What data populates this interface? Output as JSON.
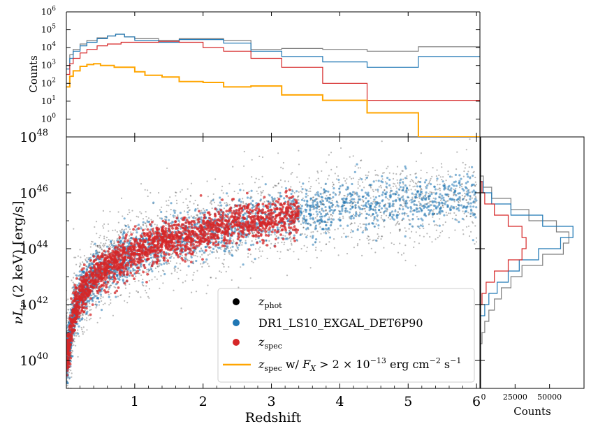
{
  "chart_data": [
    {
      "type": "scatter",
      "panel": "main",
      "xlabel": "Redshift",
      "ylabel": "νL_ν (2 keV) [erg/s]",
      "ylabel_parts": {
        "nu": "ν",
        "L": "L",
        "sub": "ν",
        "rest": " (2 keV) [erg/s]"
      },
      "xlim": [
        0,
        6.05
      ],
      "ylim_log10": [
        39.0,
        48.0
      ],
      "yscale": "log",
      "x_ticks": [
        1,
        2,
        3,
        4,
        5,
        6
      ],
      "x_tick_labels": [
        "1",
        "2",
        "3",
        "4",
        "5",
        "6"
      ],
      "y_ticks_log10": [
        40,
        42,
        44,
        46,
        48
      ],
      "y_tick_labels": [
        {
          "base": "10",
          "exp": "40"
        },
        {
          "base": "10",
          "exp": "42"
        },
        {
          "base": "10",
          "exp": "44"
        },
        {
          "base": "10",
          "exp": "46"
        },
        {
          "base": "10",
          "exp": "48"
        }
      ],
      "series": [
        {
          "key": "phot",
          "label_main": "z",
          "label_sub": "phot",
          "color": "#000000"
        },
        {
          "key": "ls10",
          "label": "DR1_LS10_EXGAL_DET6P90",
          "color": "#1f77b4"
        },
        {
          "key": "spec",
          "label_main": "z",
          "label_sub": "spec",
          "color": "#d62728"
        },
        {
          "key": "spec_bright",
          "label_main": "z",
          "label_sub": "spec",
          "label_rest": " w/ ",
          "label_fx": "F",
          "label_fx_sub": "X",
          "label_cond": " > 2 × 10",
          "label_cond_exp": "−13",
          "label_units": " erg cm",
          "label_units_exp1": "−2",
          "label_units2": " s",
          "label_units_exp2": "−1",
          "color": "#ffa500"
        }
      ],
      "legend_position": "lower-right",
      "trend_log10": [
        [
          0.02,
          40.2
        ],
        [
          0.1,
          41.6
        ],
        [
          0.2,
          42.3
        ],
        [
          0.4,
          43.0
        ],
        [
          0.7,
          43.5
        ],
        [
          1.0,
          43.9
        ],
        [
          1.5,
          44.3
        ],
        [
          2.0,
          44.6
        ],
        [
          2.5,
          44.9
        ],
        [
          3.0,
          45.1
        ],
        [
          3.5,
          45.3
        ],
        [
          4.0,
          45.5
        ],
        [
          4.5,
          45.6
        ],
        [
          5.0,
          45.7
        ],
        [
          5.5,
          45.8
        ],
        [
          6.0,
          45.9
        ]
      ]
    },
    {
      "type": "histogram",
      "panel": "top",
      "ylabel": "Counts",
      "xlim": [
        0,
        6.05
      ],
      "ylim_log10": [
        -1,
        6
      ],
      "yscale": "log",
      "y_ticks_log10": [
        0,
        1,
        2,
        3,
        4,
        5,
        6
      ],
      "y_tick_labels": [
        {
          "base": "10",
          "exp": "0"
        },
        {
          "base": "10",
          "exp": "1"
        },
        {
          "base": "10",
          "exp": "2"
        },
        {
          "base": "10",
          "exp": "3"
        },
        {
          "base": "10",
          "exp": "4"
        },
        {
          "base": "10",
          "exp": "5"
        },
        {
          "base": "10",
          "exp": "6"
        }
      ],
      "series": [
        {
          "key": "phot",
          "color": "#7f7f7f",
          "points_log10": [
            [
              0.0,
              3.0
            ],
            [
              0.05,
              3.6
            ],
            [
              0.1,
              3.9
            ],
            [
              0.2,
              4.2
            ],
            [
              0.3,
              4.4
            ],
            [
              0.45,
              4.55
            ],
            [
              0.6,
              4.65
            ],
            [
              0.72,
              4.75
            ],
            [
              0.85,
              4.6
            ],
            [
              1.0,
              4.5
            ],
            [
              1.35,
              4.4
            ],
            [
              1.65,
              4.5
            ],
            [
              2.3,
              4.4
            ],
            [
              2.7,
              3.9
            ],
            [
              3.15,
              3.95
            ],
            [
              3.75,
              3.9
            ],
            [
              4.4,
              3.8
            ],
            [
              5.15,
              4.05
            ],
            [
              6.05,
              4.05
            ]
          ]
        },
        {
          "key": "ls10",
          "color": "#1f77b4",
          "points_log10": [
            [
              0.0,
              2.8
            ],
            [
              0.05,
              3.4
            ],
            [
              0.1,
              3.8
            ],
            [
              0.2,
              4.1
            ],
            [
              0.3,
              4.3
            ],
            [
              0.45,
              4.5
            ],
            [
              0.6,
              4.65
            ],
            [
              0.72,
              4.75
            ],
            [
              0.85,
              4.6
            ],
            [
              1.0,
              4.4
            ],
            [
              1.35,
              4.3
            ],
            [
              1.65,
              4.45
            ],
            [
              2.3,
              4.25
            ],
            [
              2.7,
              3.8
            ],
            [
              3.15,
              3.5
            ],
            [
              3.75,
              3.2
            ],
            [
              4.4,
              2.9
            ],
            [
              5.15,
              3.5
            ],
            [
              6.05,
              3.5
            ]
          ]
        },
        {
          "key": "spec",
          "color": "#d62728",
          "points_log10": [
            [
              0.0,
              2.5
            ],
            [
              0.05,
              3.1
            ],
            [
              0.1,
              3.4
            ],
            [
              0.2,
              3.7
            ],
            [
              0.3,
              3.9
            ],
            [
              0.45,
              4.1
            ],
            [
              0.6,
              4.2
            ],
            [
              0.8,
              4.3
            ],
            [
              1.0,
              4.3
            ],
            [
              1.35,
              4.35
            ],
            [
              1.65,
              4.3
            ],
            [
              2.0,
              4.0
            ],
            [
              2.3,
              3.8
            ],
            [
              2.7,
              3.4
            ],
            [
              3.15,
              2.9
            ],
            [
              3.75,
              2.0
            ],
            [
              4.4,
              1.05
            ],
            [
              5.15,
              1.05
            ],
            [
              6.05,
              1.05
            ]
          ]
        },
        {
          "key": "spec_bright",
          "color": "#ffa500",
          "points_log10": [
            [
              0.0,
              1.8
            ],
            [
              0.05,
              2.4
            ],
            [
              0.1,
              2.7
            ],
            [
              0.2,
              2.95
            ],
            [
              0.3,
              3.05
            ],
            [
              0.4,
              3.1
            ],
            [
              0.5,
              3.0
            ],
            [
              0.7,
              2.9
            ],
            [
              1.0,
              2.65
            ],
            [
              1.15,
              2.45
            ],
            [
              1.4,
              2.35
            ],
            [
              1.65,
              2.1
            ],
            [
              2.0,
              2.05
            ],
            [
              2.3,
              1.8
            ],
            [
              2.7,
              1.85
            ],
            [
              3.15,
              1.35
            ],
            [
              3.75,
              1.05
            ],
            [
              4.4,
              0.35
            ],
            [
              5.15,
              -1.0
            ],
            [
              6.05,
              0.65
            ]
          ]
        }
      ]
    },
    {
      "type": "histogram",
      "panel": "right",
      "orientation": "horizontal",
      "xlabel": "Counts",
      "xlim": [
        0,
        75000
      ],
      "x_ticks": [
        0,
        25000,
        50000
      ],
      "x_tick_labels": [
        "0",
        "25000",
        "50000"
      ],
      "series": [
        {
          "key": "phot",
          "color": "#7f7f7f",
          "points": [
            [
              40.6,
              1000
            ],
            [
              41.0,
              3000
            ],
            [
              41.4,
              6000
            ],
            [
              41.8,
              10000
            ],
            [
              42.2,
              15000
            ],
            [
              42.6,
              22000
            ],
            [
              43.0,
              30000
            ],
            [
              43.4,
              45000
            ],
            [
              43.8,
              60000
            ],
            [
              44.2,
              64000
            ],
            [
              44.6,
              55000
            ],
            [
              45.0,
              35000
            ],
            [
              45.4,
              22000
            ],
            [
              45.8,
              8000
            ],
            [
              46.2,
              2000
            ]
          ]
        },
        {
          "key": "ls10",
          "color": "#1f77b4",
          "points": [
            [
              41.6,
              3000
            ],
            [
              42.0,
              6000
            ],
            [
              42.4,
              12000
            ],
            [
              42.8,
              20000
            ],
            [
              43.2,
              28000
            ],
            [
              43.6,
              42000
            ],
            [
              44.0,
              58000
            ],
            [
              44.4,
              67000
            ],
            [
              44.8,
              45000
            ],
            [
              45.2,
              22000
            ],
            [
              45.6,
              8000
            ],
            [
              46.0,
              2000
            ]
          ]
        },
        {
          "key": "spec",
          "color": "#d62728",
          "points": [
            [
              42.0,
              1000
            ],
            [
              42.4,
              4000
            ],
            [
              42.8,
              10000
            ],
            [
              43.2,
              20000
            ],
            [
              43.6,
              30000
            ],
            [
              44.0,
              33000
            ],
            [
              44.4,
              30000
            ],
            [
              44.8,
              20000
            ],
            [
              45.2,
              10000
            ],
            [
              45.6,
              3000
            ],
            [
              46.0,
              1000
            ]
          ]
        }
      ]
    }
  ]
}
